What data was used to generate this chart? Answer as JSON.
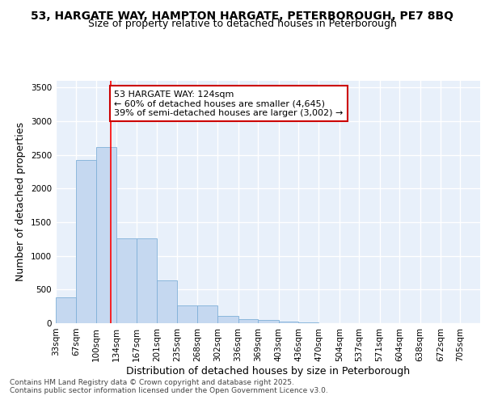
{
  "title1": "53, HARGATE WAY, HAMPTON HARGATE, PETERBOROUGH, PE7 8BQ",
  "title2": "Size of property relative to detached houses in Peterborough",
  "xlabel": "Distribution of detached houses by size in Peterborough",
  "ylabel": "Number of detached properties",
  "annotation_title": "53 HARGATE WAY: 124sqm",
  "annotation_line1": "← 60% of detached houses are smaller (4,645)",
  "annotation_line2": "39% of semi-detached houses are larger (3,002) →",
  "footer1": "Contains HM Land Registry data © Crown copyright and database right 2025.",
  "footer2": "Contains public sector information licensed under the Open Government Licence v3.0.",
  "bar_left_edges": [
    33,
    67,
    100,
    134,
    167,
    201,
    235,
    268,
    302,
    336,
    369,
    403,
    436,
    470,
    504,
    537,
    571,
    604,
    638,
    672
  ],
  "bar_widths": [
    34,
    33,
    34,
    33,
    34,
    34,
    33,
    34,
    34,
    33,
    34,
    33,
    34,
    34,
    33,
    34,
    33,
    34,
    34,
    33
  ],
  "bar_heights": [
    390,
    2420,
    2620,
    1260,
    1260,
    640,
    270,
    270,
    105,
    55,
    45,
    25,
    10,
    5,
    3,
    2,
    1,
    1,
    0,
    0
  ],
  "bar_color": "#c5d8f0",
  "bar_edge_color": "#7fb0d8",
  "red_line_x": 124,
  "ylim": [
    0,
    3600
  ],
  "yticks": [
    0,
    500,
    1000,
    1500,
    2000,
    2500,
    3000,
    3500
  ],
  "x_tick_labels": [
    "33sqm",
    "67sqm",
    "100sqm",
    "134sqm",
    "167sqm",
    "201sqm",
    "235sqm",
    "268sqm",
    "302sqm",
    "336sqm",
    "369sqm",
    "403sqm",
    "436sqm",
    "470sqm",
    "504sqm",
    "537sqm",
    "571sqm",
    "604sqm",
    "638sqm",
    "672sqm",
    "705sqm"
  ],
  "background_color": "#e8f0fa",
  "grid_color": "#ffffff",
  "fig_background": "#ffffff",
  "annotation_box_facecolor": "#ffffff",
  "annotation_box_edgecolor": "#cc0000",
  "title1_fontsize": 10,
  "title2_fontsize": 9,
  "axis_label_fontsize": 9,
  "tick_fontsize": 7.5,
  "annotation_fontsize": 8,
  "footer_fontsize": 6.5
}
